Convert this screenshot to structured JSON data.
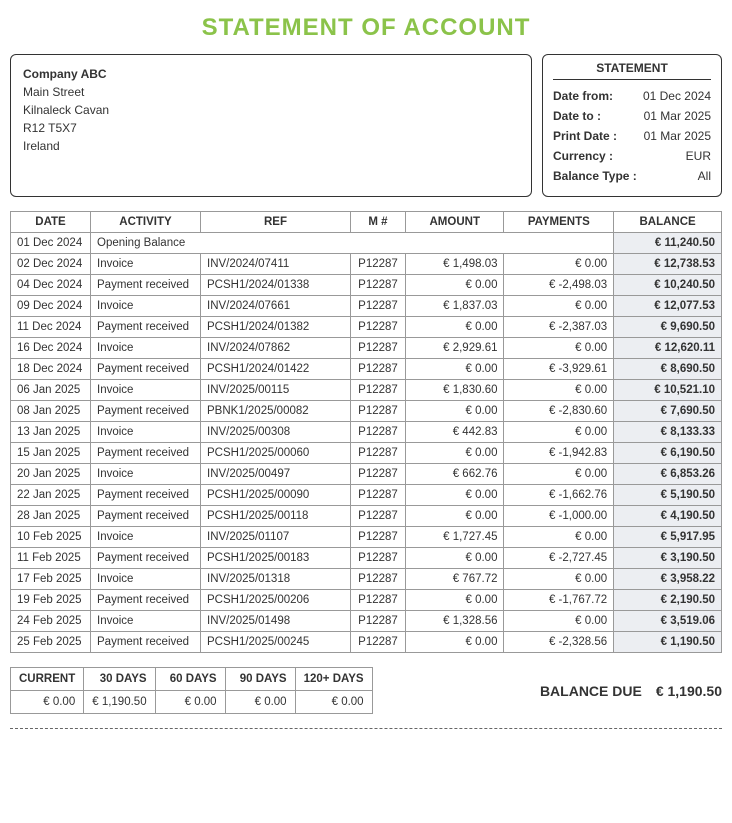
{
  "title": "STATEMENT OF ACCOUNT",
  "company": {
    "name": "Company ABC",
    "street": "Main Street",
    "city": "Kilnaleck Cavan",
    "postcode": "R12 T5X7",
    "country": "Ireland"
  },
  "statement": {
    "heading": "STATEMENT",
    "date_from_label": "Date from:",
    "date_from": "01 Dec 2024",
    "date_to_label": "Date to :",
    "date_to": "01 Mar 2025",
    "print_date_label": "Print Date :",
    "print_date": "01 Mar 2025",
    "currency_label": "Currency :",
    "currency": "EUR",
    "balance_type_label": "Balance Type :",
    "balance_type": "All"
  },
  "ledger": {
    "headers": {
      "date": "DATE",
      "activity": "ACTIVITY",
      "ref": "REF",
      "m": "M #",
      "amount": "AMOUNT",
      "payments": "PAYMENTS",
      "balance": "BALANCE"
    },
    "opening": {
      "date": "01 Dec 2024",
      "label": "Opening Balance",
      "balance": "€ 11,240.50"
    },
    "rows": [
      {
        "date": "02 Dec 2024",
        "activity": "Invoice",
        "ref": "INV/2024/07411",
        "m": "P12287",
        "amount": "€ 1,498.03",
        "payments": "€ 0.00",
        "balance": "€ 12,738.53"
      },
      {
        "date": "04 Dec 2024",
        "activity": "Payment received",
        "ref": "PCSH1/2024/01338",
        "m": "P12287",
        "amount": "€ 0.00",
        "payments": "€ -2,498.03",
        "balance": "€ 10,240.50"
      },
      {
        "date": "09 Dec 2024",
        "activity": "Invoice",
        "ref": "INV/2024/07661",
        "m": "P12287",
        "amount": "€ 1,837.03",
        "payments": "€ 0.00",
        "balance": "€ 12,077.53"
      },
      {
        "date": "11 Dec 2024",
        "activity": "Payment received",
        "ref": "PCSH1/2024/01382",
        "m": "P12287",
        "amount": "€ 0.00",
        "payments": "€ -2,387.03",
        "balance": "€ 9,690.50"
      },
      {
        "date": "16 Dec 2024",
        "activity": "Invoice",
        "ref": "INV/2024/07862",
        "m": "P12287",
        "amount": "€ 2,929.61",
        "payments": "€ 0.00",
        "balance": "€ 12,620.11"
      },
      {
        "date": "18 Dec 2024",
        "activity": "Payment received",
        "ref": "PCSH1/2024/01422",
        "m": "P12287",
        "amount": "€ 0.00",
        "payments": "€ -3,929.61",
        "balance": "€ 8,690.50"
      },
      {
        "date": "06 Jan 2025",
        "activity": "Invoice",
        "ref": "INV/2025/00115",
        "m": "P12287",
        "amount": "€ 1,830.60",
        "payments": "€ 0.00",
        "balance": "€ 10,521.10"
      },
      {
        "date": "08 Jan 2025",
        "activity": "Payment received",
        "ref": "PBNK1/2025/00082",
        "m": "P12287",
        "amount": "€ 0.00",
        "payments": "€ -2,830.60",
        "balance": "€ 7,690.50"
      },
      {
        "date": "13 Jan 2025",
        "activity": "Invoice",
        "ref": "INV/2025/00308",
        "m": "P12287",
        "amount": "€ 442.83",
        "payments": "€ 0.00",
        "balance": "€ 8,133.33"
      },
      {
        "date": "15 Jan 2025",
        "activity": "Payment received",
        "ref": "PCSH1/2025/00060",
        "m": "P12287",
        "amount": "€ 0.00",
        "payments": "€ -1,942.83",
        "balance": "€ 6,190.50"
      },
      {
        "date": "20 Jan 2025",
        "activity": "Invoice",
        "ref": "INV/2025/00497",
        "m": "P12287",
        "amount": "€ 662.76",
        "payments": "€ 0.00",
        "balance": "€ 6,853.26"
      },
      {
        "date": "22 Jan 2025",
        "activity": "Payment received",
        "ref": "PCSH1/2025/00090",
        "m": "P12287",
        "amount": "€ 0.00",
        "payments": "€ -1,662.76",
        "balance": "€ 5,190.50"
      },
      {
        "date": "28 Jan 2025",
        "activity": "Payment received",
        "ref": "PCSH1/2025/00118",
        "m": "P12287",
        "amount": "€ 0.00",
        "payments": "€ -1,000.00",
        "balance": "€ 4,190.50"
      },
      {
        "date": "10 Feb 2025",
        "activity": "Invoice",
        "ref": "INV/2025/01107",
        "m": "P12287",
        "amount": "€ 1,727.45",
        "payments": "€ 0.00",
        "balance": "€ 5,917.95"
      },
      {
        "date": "11 Feb 2025",
        "activity": "Payment received",
        "ref": "PCSH1/2025/00183",
        "m": "P12287",
        "amount": "€ 0.00",
        "payments": "€ -2,727.45",
        "balance": "€ 3,190.50"
      },
      {
        "date": "17 Feb 2025",
        "activity": "Invoice",
        "ref": "INV/2025/01318",
        "m": "P12287",
        "amount": "€ 767.72",
        "payments": "€ 0.00",
        "balance": "€ 3,958.22"
      },
      {
        "date": "19 Feb 2025",
        "activity": "Payment received",
        "ref": "PCSH1/2025/00206",
        "m": "P12287",
        "amount": "€ 0.00",
        "payments": "€ -1,767.72",
        "balance": "€ 2,190.50"
      },
      {
        "date": "24 Feb 2025",
        "activity": "Invoice",
        "ref": "INV/2025/01498",
        "m": "P12287",
        "amount": "€ 1,328.56",
        "payments": "€ 0.00",
        "balance": "€ 3,519.06"
      },
      {
        "date": "25 Feb 2025",
        "activity": "Payment received",
        "ref": "PCSH1/2025/00245",
        "m": "P12287",
        "amount": "€ 0.00",
        "payments": "€ -2,328.56",
        "balance": "€ 1,190.50"
      }
    ]
  },
  "aging": {
    "headers": [
      "CURRENT",
      "30 DAYS",
      "60 DAYS",
      "90 DAYS",
      "120+ DAYS"
    ],
    "values": [
      "€ 0.00",
      "€ 1,190.50",
      "€ 0.00",
      "€ 0.00",
      "€ 0.00"
    ]
  },
  "balance_due": {
    "label": "BALANCE DUE",
    "value": "€ 1,190.50"
  }
}
